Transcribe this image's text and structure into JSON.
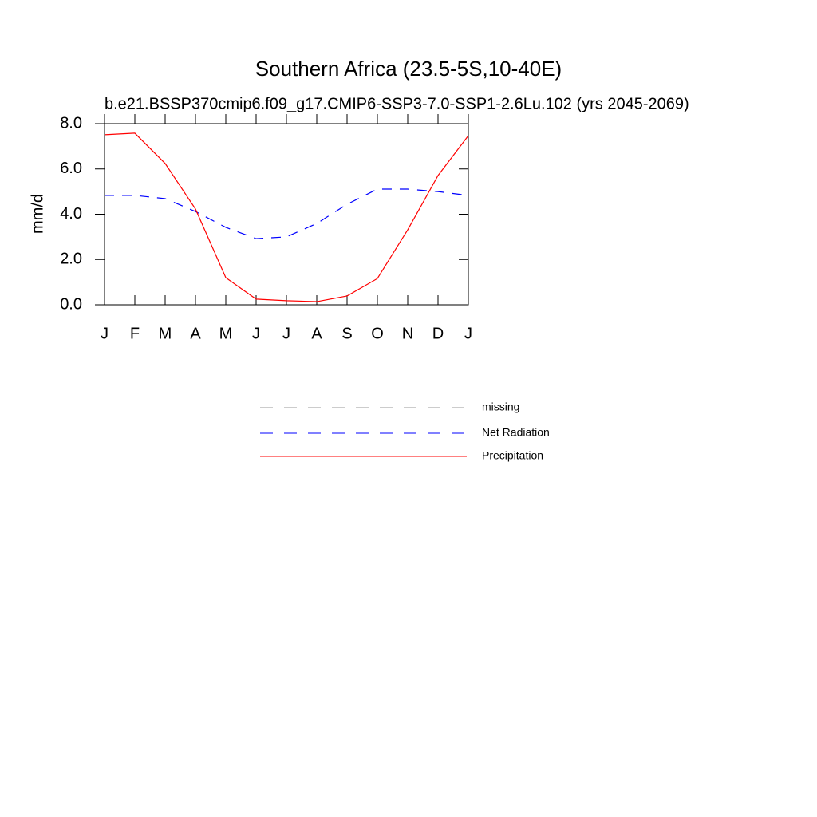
{
  "chart_data": {
    "type": "line",
    "title": "Southern Africa (23.5-5S,10-40E)",
    "subtitle": "b.e21.BSSP370cmip6.f09_g17.CMIP6-SSP3-7.0-SSP1-2.6Lu.102 (yrs 2045-2069)",
    "y_label": "mm/d",
    "categories": [
      "J",
      "F",
      "M",
      "A",
      "M",
      "J",
      "J",
      "A",
      "S",
      "O",
      "N",
      "D",
      "J"
    ],
    "series": [
      {
        "name": "missing",
        "color": "#999999",
        "dashed": true,
        "values": [
          null,
          null,
          null,
          null,
          null,
          null,
          null,
          null,
          null,
          null,
          null,
          null,
          null
        ]
      },
      {
        "name": "Net Radiation",
        "color": "#0000ff",
        "dashed": true,
        "values": [
          4.83,
          4.83,
          4.69,
          4.12,
          3.42,
          2.92,
          3.0,
          3.59,
          4.44,
          5.11,
          5.11,
          5.0,
          4.83
        ]
      },
      {
        "name": "Precipitation",
        "color": "#ff0000",
        "dashed": false,
        "values": [
          7.51,
          7.58,
          6.24,
          4.23,
          1.2,
          0.25,
          0.18,
          0.14,
          0.39,
          1.16,
          3.31,
          5.71,
          7.47
        ]
      }
    ],
    "ylim": [
      0,
      8
    ],
    "yticks": [
      {
        "value": 0,
        "label": "0.0"
      },
      {
        "value": 2,
        "label": "2.0"
      },
      {
        "value": 4,
        "label": "4.0"
      },
      {
        "value": 6,
        "label": "6.0"
      },
      {
        "value": 8,
        "label": "8.0"
      }
    ],
    "grid": false
  }
}
